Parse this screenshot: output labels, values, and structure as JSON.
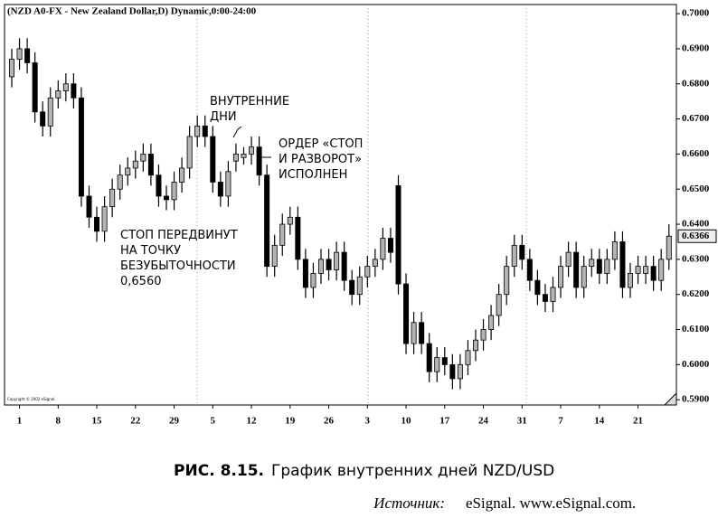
{
  "chart_data": {
    "type": "candlestick",
    "title": "(NZD A0-FX - New Zealand Dollar,D) Dynamic,0:00-24:00",
    "copyright": "Copyright © 2002 eSignal",
    "categories": [
      null,
      "1",
      null,
      null,
      null,
      null,
      "8",
      null,
      null,
      null,
      null,
      "15",
      null,
      null,
      null,
      null,
      "22",
      null,
      null,
      null,
      null,
      "29",
      null,
      null,
      null,
      null,
      "5",
      null,
      null,
      null,
      null,
      "12",
      null,
      null,
      null,
      null,
      "19",
      null,
      null,
      null,
      null,
      "26",
      null,
      null,
      null,
      null,
      "3",
      null,
      null,
      null,
      null,
      "10",
      null,
      null,
      null,
      null,
      "17",
      null,
      null,
      null,
      null,
      "24",
      null,
      null,
      null,
      null,
      "31",
      null,
      null,
      null,
      null,
      "7",
      null,
      null,
      null,
      null,
      "14",
      null,
      null,
      null,
      null,
      "21",
      null,
      null,
      null,
      null
    ],
    "open": [
      0.682,
      0.687,
      0.69,
      0.686,
      0.672,
      0.668,
      0.676,
      0.678,
      0.68,
      0.676,
      0.648,
      0.642,
      0.638,
      0.645,
      0.65,
      0.654,
      0.656,
      0.658,
      0.66,
      0.654,
      0.648,
      0.647,
      0.652,
      0.656,
      0.665,
      0.668,
      0.665,
      0.652,
      0.648,
      0.658,
      0.659,
      0.66,
      0.662,
      0.654,
      0.628,
      0.634,
      0.64,
      0.642,
      0.63,
      0.622,
      0.626,
      0.63,
      0.627,
      0.632,
      0.624,
      0.62,
      0.625,
      0.628,
      0.63,
      0.636,
      0.651,
      0.623,
      0.606,
      0.612,
      0.606,
      0.598,
      0.602,
      0.6,
      0.596,
      0.6,
      0.604,
      0.607,
      0.61,
      0.614,
      0.62,
      0.628,
      0.634,
      0.63,
      0.624,
      0.62,
      0.618,
      0.622,
      0.628,
      0.632,
      0.622,
      0.628,
      0.63,
      0.626,
      0.63,
      0.635,
      0.622,
      0.626,
      0.626,
      0.628,
      0.624,
      0.63
    ],
    "high": [
      0.69,
      0.693,
      0.693,
      0.689,
      0.675,
      0.679,
      0.681,
      0.683,
      0.683,
      0.679,
      0.651,
      0.645,
      0.648,
      0.653,
      0.657,
      0.659,
      0.661,
      0.663,
      0.663,
      0.657,
      0.651,
      0.655,
      0.659,
      0.668,
      0.671,
      0.671,
      0.668,
      0.655,
      0.658,
      0.663,
      0.662,
      0.665,
      0.665,
      0.657,
      0.637,
      0.643,
      0.645,
      0.645,
      0.633,
      0.629,
      0.633,
      0.633,
      0.635,
      0.635,
      0.627,
      0.628,
      0.631,
      0.633,
      0.639,
      0.639,
      0.654,
      0.626,
      0.615,
      0.615,
      0.609,
      0.605,
      0.605,
      0.603,
      0.603,
      0.607,
      0.61,
      0.613,
      0.617,
      0.623,
      0.631,
      0.637,
      0.637,
      0.633,
      0.627,
      0.623,
      0.625,
      0.631,
      0.635,
      0.635,
      0.631,
      0.633,
      0.633,
      0.633,
      0.638,
      0.638,
      0.629,
      0.631,
      0.631,
      0.631,
      0.633,
      0.64
    ],
    "low": [
      0.679,
      0.684,
      0.683,
      0.669,
      0.665,
      0.665,
      0.673,
      0.675,
      0.673,
      0.645,
      0.639,
      0.635,
      0.635,
      0.642,
      0.647,
      0.651,
      0.653,
      0.655,
      0.651,
      0.645,
      0.644,
      0.644,
      0.649,
      0.653,
      0.662,
      0.662,
      0.649,
      0.645,
      0.645,
      0.655,
      0.657,
      0.657,
      0.651,
      0.625,
      0.625,
      0.631,
      0.637,
      0.627,
      0.619,
      0.619,
      0.623,
      0.624,
      0.624,
      0.621,
      0.617,
      0.617,
      0.622,
      0.625,
      0.627,
      0.629,
      0.62,
      0.603,
      0.603,
      0.603,
      0.595,
      0.595,
      0.597,
      0.593,
      0.593,
      0.597,
      0.601,
      0.604,
      0.607,
      0.611,
      0.617,
      0.625,
      0.627,
      0.621,
      0.617,
      0.615,
      0.615,
      0.619,
      0.625,
      0.619,
      0.619,
      0.625,
      0.623,
      0.623,
      0.627,
      0.619,
      0.619,
      0.623,
      0.623,
      0.621,
      0.621,
      0.627
    ],
    "close": [
      0.687,
      0.69,
      0.686,
      0.672,
      0.668,
      0.676,
      0.678,
      0.68,
      0.676,
      0.648,
      0.642,
      0.638,
      0.645,
      0.65,
      0.654,
      0.656,
      0.658,
      0.66,
      0.654,
      0.648,
      0.647,
      0.652,
      0.656,
      0.665,
      0.668,
      0.665,
      0.652,
      0.648,
      0.655,
      0.66,
      0.66,
      0.662,
      0.654,
      0.628,
      0.634,
      0.64,
      0.642,
      0.63,
      0.622,
      0.626,
      0.63,
      0.627,
      0.632,
      0.624,
      0.62,
      0.625,
      0.628,
      0.63,
      0.636,
      0.632,
      0.623,
      0.606,
      0.612,
      0.606,
      0.598,
      0.602,
      0.6,
      0.596,
      0.6,
      0.604,
      0.607,
      0.61,
      0.614,
      0.62,
      0.628,
      0.634,
      0.63,
      0.624,
      0.62,
      0.618,
      0.622,
      0.628,
      0.632,
      0.622,
      0.628,
      0.63,
      0.626,
      0.63,
      0.635,
      0.622,
      0.626,
      0.628,
      0.628,
      0.624,
      0.63,
      0.6366
    ],
    "up_color": "#b4b4b4",
    "down_color": "#000000",
    "ylim": [
      0.5885,
      0.7026
    ],
    "yticks": [
      {
        "value": 0.59,
        "label": "0.5900"
      },
      {
        "value": 0.6,
        "label": "0.6000"
      },
      {
        "value": 0.61,
        "label": "0.6100"
      },
      {
        "value": 0.62,
        "label": "0.6200"
      },
      {
        "value": 0.63,
        "label": "0.6300"
      },
      {
        "value": 0.64,
        "label": "0.6400"
      },
      {
        "value": 0.65,
        "label": "0.6500"
      },
      {
        "value": 0.66,
        "label": "0.6600"
      },
      {
        "value": 0.67,
        "label": "0.6700"
      },
      {
        "value": 0.68,
        "label": "0.6800"
      },
      {
        "value": 0.69,
        "label": "0.6900"
      },
      {
        "value": 0.7,
        "label": "0.7000"
      }
    ],
    "last_price": 0.6366,
    "annotations": [
      {
        "lines": [
          "ВНУТРЕННИЕ",
          "ДНИ"
        ]
      },
      {
        "lines": [
          "ОРДЕР «СТОП",
          "И РАЗВОРОТ»",
          "ИСПОЛНЕН"
        ]
      },
      {
        "lines": [
          "СТОП ПЕРЕДВИНУТ",
          "НА ТОЧКУ",
          "БЕЗУБЫТОЧНОСТИ",
          "0,6560"
        ]
      }
    ]
  },
  "caption": {
    "figure": "РИС. 8.15.",
    "text": "График внутренних дней NZD/USD"
  },
  "source": {
    "label": "Источник:",
    "text": "eSignal. www.eSignal.com."
  }
}
